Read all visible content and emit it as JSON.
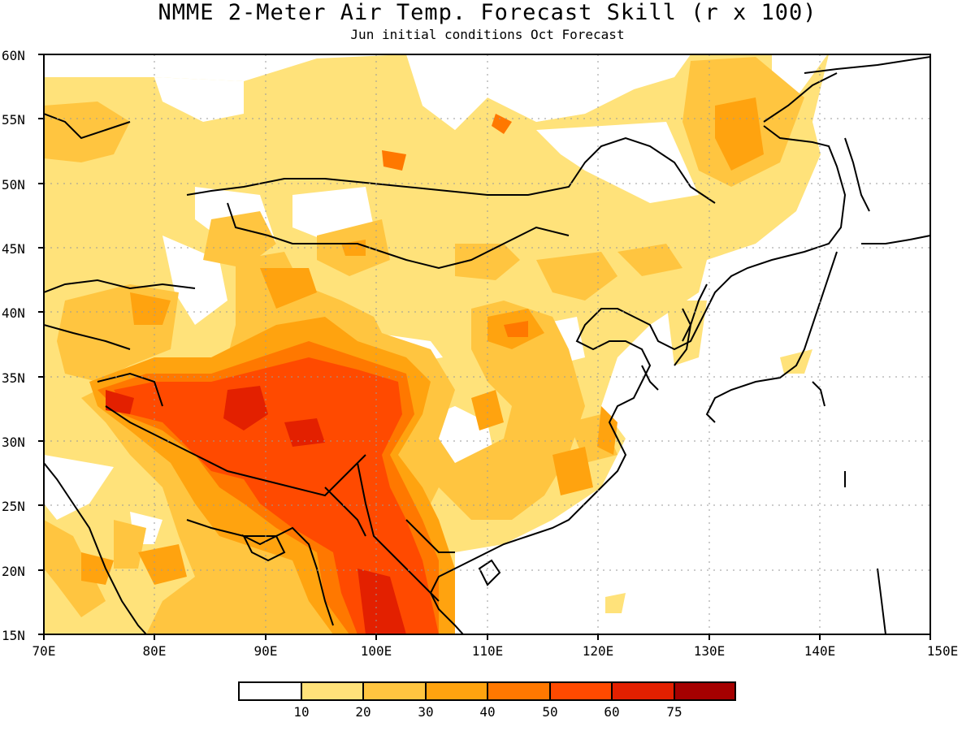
{
  "title": "NMME 2-Meter Air Temp. Forecast Skill (r x 100)",
  "subtitle": "Jun initial conditions  Oct Forecast",
  "axes": {
    "lon_ticks": [
      "70E",
      "80E",
      "90E",
      "100E",
      "110E",
      "120E",
      "130E",
      "140E",
      "150E"
    ],
    "lat_ticks": [
      "60N",
      "55N",
      "50N",
      "45N",
      "40N",
      "35N",
      "30N",
      "25N",
      "20N",
      "15N"
    ],
    "lon_range": [
      70,
      150
    ],
    "lat_range": [
      15,
      60
    ],
    "grid": true
  },
  "colorbar": {
    "labels": [
      "10",
      "20",
      "30",
      "40",
      "50",
      "60",
      "75"
    ],
    "colors": [
      "#ffffff",
      "#ffe27a",
      "#ffc540",
      "#ffa30f",
      "#ff7800",
      "#ff4a00",
      "#e32000",
      "#a50000"
    ]
  },
  "colors": {
    "coast": "#000000",
    "grid": "#9a9a9a"
  }
}
